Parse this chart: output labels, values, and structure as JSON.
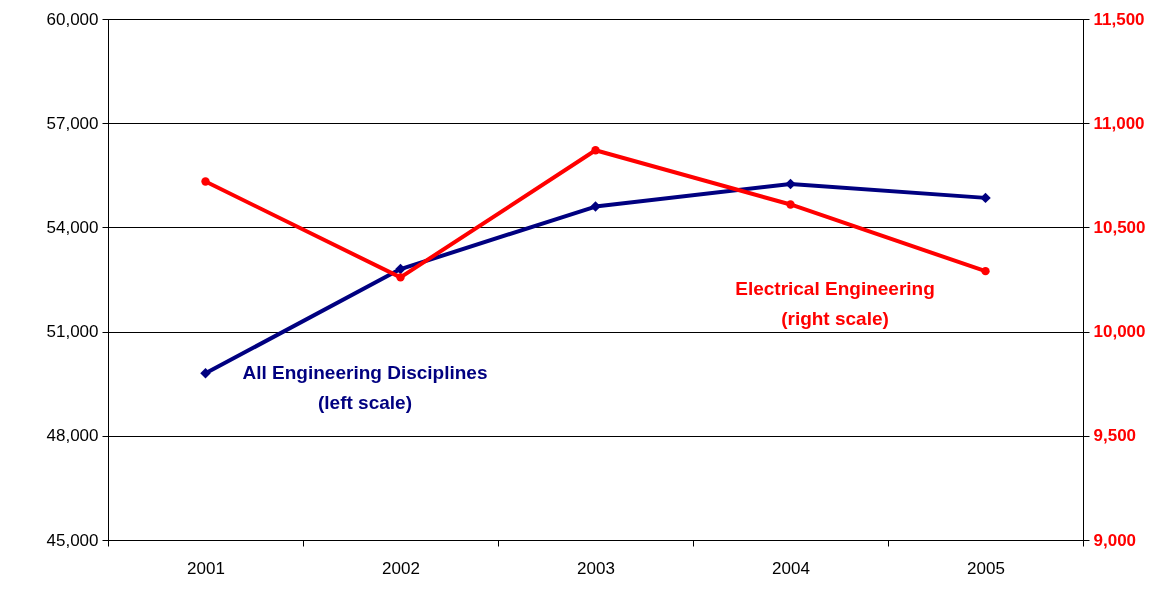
{
  "chart_data": {
    "type": "line",
    "categories": [
      "2001",
      "2002",
      "2003",
      "2004",
      "2005"
    ],
    "series": [
      {
        "name": "All Engineering Disciplines\n(left scale)",
        "color": "#000080",
        "marker": "diamond",
        "values": [
          49800,
          52800,
          54600,
          55250,
          54850
        ]
      },
      {
        "name": "Electrical Engineering\n(right scale)",
        "color": "#ff0000",
        "marker": "circle",
        "axis": "y2",
        "values": [
          10720,
          10260,
          10870,
          10610,
          10290
        ]
      }
    ],
    "ylim": [
      45000,
      60000
    ],
    "yticks": [
      {
        "value": 45000,
        "label": "45,000"
      },
      {
        "value": 48000,
        "label": "48,000"
      },
      {
        "value": 51000,
        "label": "51,000"
      },
      {
        "value": 54000,
        "label": "54,000"
      },
      {
        "value": 57000,
        "label": "57,000"
      },
      {
        "value": 60000,
        "label": "60,000"
      }
    ],
    "y2lim": [
      9000,
      11500
    ],
    "y2ticks": [
      {
        "value": 9000,
        "label": "9,000"
      },
      {
        "value": 9500,
        "label": "9,500"
      },
      {
        "value": 10000,
        "label": "10,000"
      },
      {
        "value": 10500,
        "label": "10,500"
      },
      {
        "value": 11000,
        "label": "11,000"
      },
      {
        "value": 11500,
        "label": "11,500"
      }
    ],
    "grid": "y"
  }
}
